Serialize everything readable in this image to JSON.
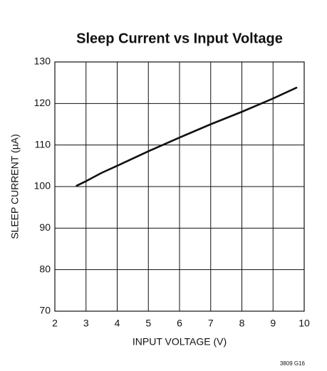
{
  "chart_data": {
    "type": "line",
    "title": "Sleep Current vs Input Voltage",
    "x_label": "INPUT VOLTAGE (V)",
    "y_label": "SLEEP CURRENT (µA)",
    "note": "3809 G16",
    "series": [
      {
        "name": "Sleep Current",
        "color": "#111111",
        "x": [
          2.7,
          3,
          3.5,
          4,
          5,
          6,
          7,
          8,
          9,
          9.75
        ],
        "values": [
          100.2,
          101.3,
          103.3,
          105,
          108.5,
          111.8,
          115,
          118,
          121.2,
          123.8
        ]
      }
    ],
    "xlim": [
      2,
      10
    ],
    "xticks": [
      2,
      3,
      4,
      5,
      6,
      7,
      8,
      9,
      10
    ],
    "ylim": [
      70,
      130
    ],
    "yticks": [
      70,
      80,
      90,
      100,
      110,
      120,
      130
    ],
    "grid": true
  }
}
